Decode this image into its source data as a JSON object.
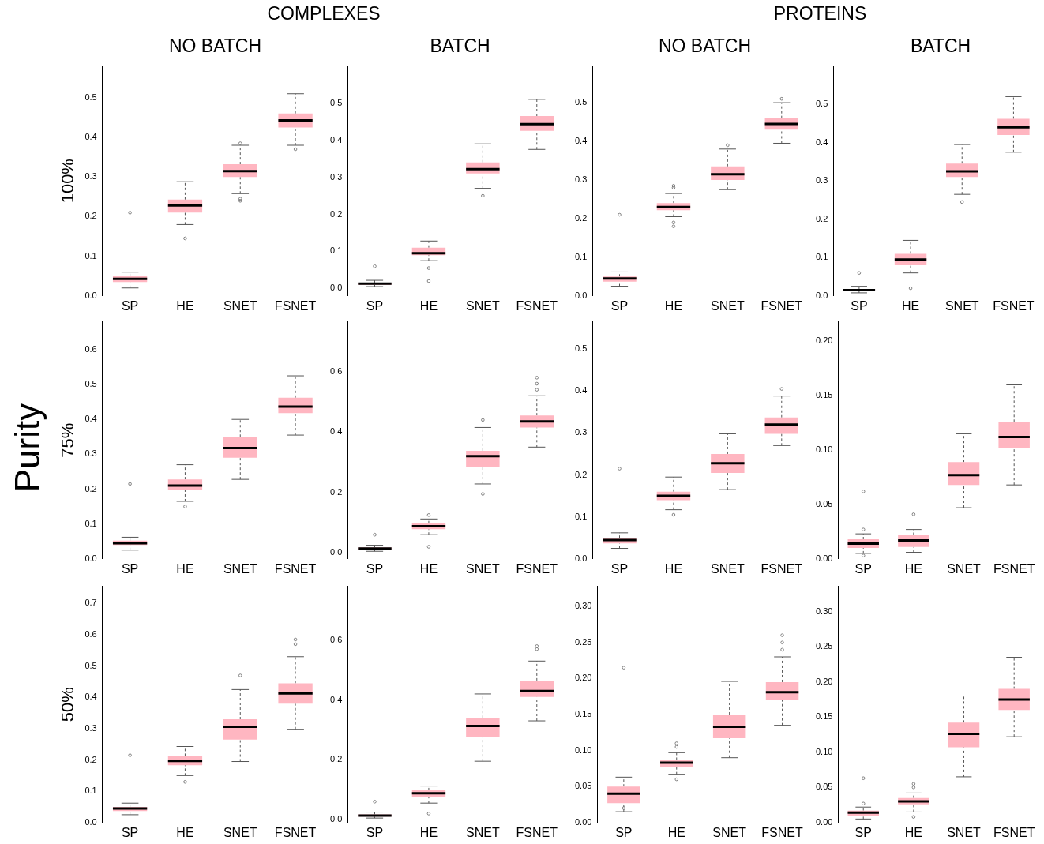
{
  "chart_data": [
    {
      "type": "box",
      "title": "NO BATCH",
      "ylabel": "100%",
      "annotations": [
        "COMPLEXES"
      ],
      "categories": [
        "SP",
        "HE",
        "SNET",
        "FSNET"
      ],
      "ylim": [
        0,
        0.58
      ],
      "yticks": [
        {
          "value": 0,
          "label": "0.0"
        },
        0.1,
        0.2,
        0.3,
        0.4,
        0.5
      ],
      "grid": false,
      "series": [
        {
          "color": "#ffb6c1",
          "boxes": [
            {
              "low": 0.02,
              "q1": 0.035,
              "median": 0.043,
              "q3": 0.05,
              "high": 0.06,
              "outliers": [
                0.21
              ]
            },
            {
              "low": 0.18,
              "q1": 0.21,
              "median": 0.228,
              "q3": 0.243,
              "high": 0.288,
              "outliers": [
                0.145
              ]
            },
            {
              "low": 0.258,
              "q1": 0.3,
              "median": 0.315,
              "q3": 0.332,
              "high": 0.38,
              "outliers": [
                0.245,
                0.24,
                0.385
              ]
            },
            {
              "low": 0.38,
              "q1": 0.425,
              "median": 0.443,
              "q3": 0.46,
              "high": 0.51,
              "outliers": [
                0.37
              ]
            }
          ]
        }
      ]
    },
    {
      "type": "box",
      "title": "BATCH",
      "categories": [
        "SP",
        "HE",
        "SNET",
        "FSNET"
      ],
      "ylim": [
        -0.02,
        0.6
      ],
      "yticks": [
        {
          "value": 0,
          "label": "0.0"
        },
        0.1,
        0.2,
        0.3,
        0.4,
        0.5
      ],
      "grid": false,
      "series": [
        {
          "color": "#ffb6c1",
          "boxes": [
            {
              "low": 0.005,
              "q1": 0.01,
              "median": 0.013,
              "q3": 0.016,
              "high": 0.022,
              "outliers": [
                0.06
              ]
            },
            {
              "low": 0.075,
              "q1": 0.09,
              "median": 0.095,
              "q3": 0.11,
              "high": 0.128,
              "outliers": [
                0.02,
                0.055
              ]
            },
            {
              "low": 0.27,
              "q1": 0.31,
              "median": 0.322,
              "q3": 0.34,
              "high": 0.39,
              "outliers": [
                0.25
              ]
            },
            {
              "low": 0.375,
              "q1": 0.425,
              "median": 0.443,
              "q3": 0.465,
              "high": 0.51
            }
          ]
        }
      ]
    },
    {
      "type": "box",
      "title": "NO BATCH",
      "annotations": [
        "PROTEINS"
      ],
      "categories": [
        "SP",
        "HE",
        "SNET",
        "FSNET"
      ],
      "ylim": [
        0,
        0.595
      ],
      "yticks": [
        {
          "value": 0,
          "label": "0.0"
        },
        0.1,
        0.2,
        0.3,
        0.4,
        0.5
      ],
      "grid": false,
      "series": [
        {
          "color": "#ffb6c1",
          "boxes": [
            {
              "low": 0.025,
              "q1": 0.037,
              "median": 0.045,
              "q3": 0.05,
              "high": 0.062,
              "outliers": [
                0.21
              ]
            },
            {
              "low": 0.205,
              "q1": 0.222,
              "median": 0.23,
              "q3": 0.24,
              "high": 0.265,
              "outliers": [
                0.18,
                0.19,
                0.28,
                0.285
              ]
            },
            {
              "low": 0.275,
              "q1": 0.3,
              "median": 0.315,
              "q3": 0.335,
              "high": 0.38,
              "outliers": [
                0.39
              ]
            },
            {
              "low": 0.395,
              "q1": 0.43,
              "median": 0.445,
              "q3": 0.46,
              "high": 0.5,
              "outliers": [
                0.51
              ]
            }
          ]
        }
      ]
    },
    {
      "type": "box",
      "title": "BATCH",
      "categories": [
        "SP",
        "HE",
        "SNET",
        "FSNET"
      ],
      "ylim": [
        0,
        0.6
      ],
      "yticks": [
        {
          "value": 0,
          "label": "0.0"
        },
        0.1,
        0.2,
        0.3,
        0.4,
        0.5
      ],
      "grid": false,
      "series": [
        {
          "color": "#ffb6c1",
          "boxes": [
            {
              "low": 0.008,
              "q1": 0.012,
              "median": 0.015,
              "q3": 0.018,
              "high": 0.025,
              "outliers": [
                0.06
              ]
            },
            {
              "low": 0.06,
              "q1": 0.08,
              "median": 0.095,
              "q3": 0.11,
              "high": 0.145,
              "outliers": [
                0.02
              ]
            },
            {
              "low": 0.265,
              "q1": 0.31,
              "median": 0.325,
              "q3": 0.345,
              "high": 0.395,
              "outliers": [
                0.245
              ]
            },
            {
              "low": 0.375,
              "q1": 0.42,
              "median": 0.44,
              "q3": 0.462,
              "high": 0.52
            }
          ]
        }
      ]
    },
    {
      "type": "box",
      "ylabel": "75%",
      "annotations": [
        "Purity"
      ],
      "categories": [
        "SP",
        "HE",
        "SNET",
        "FSNET"
      ],
      "ylim": [
        0,
        0.68
      ],
      "yticks": [
        {
          "value": 0,
          "label": "0.0"
        },
        0.1,
        0.2,
        0.3,
        0.4,
        0.5,
        0.6
      ],
      "grid": false,
      "series": [
        {
          "color": "#ffb6c1",
          "boxes": [
            {
              "low": 0.025,
              "q1": 0.04,
              "median": 0.045,
              "q3": 0.052,
              "high": 0.062,
              "outliers": [
                0.215
              ]
            },
            {
              "low": 0.165,
              "q1": 0.197,
              "median": 0.21,
              "q3": 0.228,
              "high": 0.27,
              "outliers": [
                0.15
              ]
            },
            {
              "low": 0.228,
              "q1": 0.29,
              "median": 0.318,
              "q3": 0.35,
              "high": 0.4
            },
            {
              "low": 0.355,
              "q1": 0.418,
              "median": 0.437,
              "q3": 0.462,
              "high": 0.525
            }
          ]
        }
      ]
    },
    {
      "type": "box",
      "categories": [
        "SP",
        "HE",
        "SNET",
        "FSNET"
      ],
      "ylim": [
        -0.02,
        0.765
      ],
      "yticks": [
        {
          "value": 0,
          "label": "0.0"
        },
        0.2,
        0.4,
        0.6
      ],
      "grid": false,
      "series": [
        {
          "color": "#ffb6c1",
          "boxes": [
            {
              "low": 0.005,
              "q1": 0.01,
              "median": 0.014,
              "q3": 0.018,
              "high": 0.025,
              "outliers": [
                0.06
              ]
            },
            {
              "low": 0.06,
              "q1": 0.078,
              "median": 0.088,
              "q3": 0.098,
              "high": 0.112,
              "outliers": [
                0.02,
                0.125
              ]
            },
            {
              "low": 0.228,
              "q1": 0.285,
              "median": 0.32,
              "q3": 0.338,
              "high": 0.415,
              "outliers": [
                0.195,
                0.44
              ]
            },
            {
              "low": 0.35,
              "q1": 0.415,
              "median": 0.435,
              "q3": 0.455,
              "high": 0.52,
              "outliers": [
                0.54,
                0.56,
                0.58
              ]
            }
          ]
        }
      ]
    },
    {
      "type": "box",
      "categories": [
        "SP",
        "HE",
        "SNET",
        "FSNET"
      ],
      "ylim": [
        0,
        0.565
      ],
      "yticks": [
        {
          "value": 0,
          "label": "0.0"
        },
        0.1,
        0.2,
        0.3,
        0.4,
        0.5
      ],
      "grid": false,
      "series": [
        {
          "color": "#ffb6c1",
          "boxes": [
            {
              "low": 0.025,
              "q1": 0.037,
              "median": 0.045,
              "q3": 0.05,
              "high": 0.062,
              "outliers": [
                0.215
              ]
            },
            {
              "low": 0.117,
              "q1": 0.14,
              "median": 0.15,
              "q3": 0.16,
              "high": 0.195,
              "outliers": [
                0.105
              ]
            },
            {
              "low": 0.165,
              "q1": 0.205,
              "median": 0.228,
              "q3": 0.25,
              "high": 0.298
            },
            {
              "low": 0.27,
              "q1": 0.298,
              "median": 0.32,
              "q3": 0.337,
              "high": 0.388,
              "outliers": [
                0.405
              ]
            }
          ]
        }
      ]
    },
    {
      "type": "box",
      "categories": [
        "SP",
        "HE",
        "SNET",
        "FSNET"
      ],
      "ylim": [
        0,
        0.218
      ],
      "yticks": [
        {
          "value": 0,
          "label": "0.00"
        },
        {
          "value": 0.05,
          "label": "0.05"
        },
        {
          "value": 0.1,
          "label": "0.10"
        },
        {
          "value": 0.15,
          "label": "0.15"
        },
        {
          "value": 0.2,
          "label": "0.20"
        }
      ],
      "grid": false,
      "series": [
        {
          "color": "#ffb6c1",
          "boxes": [
            {
              "low": 0.005,
              "q1": 0.01,
              "median": 0.014,
              "q3": 0.018,
              "high": 0.023,
              "outliers": [
                0.062,
                0.027,
                0.003
              ]
            },
            {
              "low": 0.006,
              "q1": 0.011,
              "median": 0.017,
              "q3": 0.022,
              "high": 0.027,
              "outliers": [
                0.041
              ]
            },
            {
              "low": 0.047,
              "q1": 0.068,
              "median": 0.077,
              "q3": 0.089,
              "high": 0.115
            },
            {
              "low": 0.068,
              "q1": 0.102,
              "median": 0.112,
              "q3": 0.126,
              "high": 0.16
            }
          ]
        }
      ]
    },
    {
      "type": "box",
      "ylabel": "50%",
      "categories": [
        "SP",
        "HE",
        "SNET",
        "FSNET"
      ],
      "ylim": [
        0,
        0.755
      ],
      "yticks": [
        {
          "value": 0,
          "label": "0.0"
        },
        0.1,
        0.2,
        0.3,
        0.4,
        0.5,
        0.6,
        0.7
      ],
      "grid": false,
      "series": [
        {
          "color": "#ffb6c1",
          "boxes": [
            {
              "low": 0.025,
              "q1": 0.037,
              "median": 0.045,
              "q3": 0.05,
              "high": 0.062,
              "outliers": [
                0.215
              ]
            },
            {
              "low": 0.15,
              "q1": 0.183,
              "median": 0.197,
              "q3": 0.213,
              "high": 0.243,
              "outliers": [
                0.13
              ]
            },
            {
              "low": 0.195,
              "q1": 0.265,
              "median": 0.306,
              "q3": 0.33,
              "high": 0.425,
              "outliers": [
                0.47
              ]
            },
            {
              "low": 0.298,
              "q1": 0.38,
              "median": 0.413,
              "q3": 0.445,
              "high": 0.53,
              "outliers": [
                0.57,
                0.585
              ]
            }
          ]
        }
      ]
    },
    {
      "type": "box",
      "categories": [
        "SP",
        "HE",
        "SNET",
        "FSNET"
      ],
      "ylim": [
        -0.01,
        0.78
      ],
      "yticks": [
        {
          "value": 0,
          "label": "0.0"
        },
        0.2,
        0.4,
        0.6
      ],
      "grid": false,
      "series": [
        {
          "color": "#ffb6c1",
          "boxes": [
            {
              "low": 0.005,
              "q1": 0.01,
              "median": 0.013,
              "q3": 0.017,
              "high": 0.025,
              "outliers": [
                0.06
              ]
            },
            {
              "low": 0.055,
              "q1": 0.075,
              "median": 0.088,
              "q3": 0.098,
              "high": 0.112,
              "outliers": [
                0.02
              ]
            },
            {
              "low": 0.195,
              "q1": 0.275,
              "median": 0.313,
              "q3": 0.34,
              "high": 0.42
            },
            {
              "low": 0.33,
              "q1": 0.41,
              "median": 0.43,
              "q3": 0.465,
              "high": 0.53,
              "outliers": [
                0.57,
                0.58
              ]
            }
          ]
        }
      ]
    },
    {
      "type": "box",
      "categories": [
        "SP",
        "HE",
        "SNET",
        "FSNET"
      ],
      "ylim": [
        0,
        0.328
      ],
      "yticks": [
        {
          "value": 0,
          "label": "0.00"
        },
        {
          "value": 0.05,
          "label": "0.05"
        },
        {
          "value": 0.1,
          "label": "0.10"
        },
        {
          "value": 0.15,
          "label": "0.15"
        },
        {
          "value": 0.2,
          "label": "0.20"
        },
        {
          "value": 0.25,
          "label": "0.25"
        },
        {
          "value": 0.3,
          "label": "0.30"
        }
      ],
      "grid": false,
      "series": [
        {
          "color": "#ffb6c1",
          "boxes": [
            {
              "low": 0.015,
              "q1": 0.027,
              "median": 0.04,
              "q3": 0.05,
              "high": 0.063,
              "outliers": [
                0.215,
                0.02
              ]
            },
            {
              "low": 0.067,
              "q1": 0.077,
              "median": 0.083,
              "q3": 0.087,
              "high": 0.097,
              "outliers": [
                0.06,
                0.11,
                0.105
              ]
            },
            {
              "low": 0.09,
              "q1": 0.117,
              "median": 0.133,
              "q3": 0.15,
              "high": 0.196
            },
            {
              "low": 0.135,
              "q1": 0.17,
              "median": 0.181,
              "q3": 0.195,
              "high": 0.23,
              "outliers": [
                0.24,
                0.25,
                0.26
              ]
            }
          ]
        }
      ]
    },
    {
      "type": "box",
      "categories": [
        "SP",
        "HE",
        "SNET",
        "FSNET"
      ],
      "ylim": [
        0,
        0.336
      ],
      "yticks": [
        {
          "value": 0,
          "label": "0.00"
        },
        {
          "value": 0.05,
          "label": "0.05"
        },
        {
          "value": 0.1,
          "label": "0.10"
        },
        {
          "value": 0.15,
          "label": "0.15"
        },
        {
          "value": 0.2,
          "label": "0.20"
        },
        {
          "value": 0.25,
          "label": "0.25"
        },
        {
          "value": 0.3,
          "label": "0.30"
        }
      ],
      "grid": false,
      "series": [
        {
          "color": "#ffb6c1",
          "boxes": [
            {
              "low": 0.005,
              "q1": 0.01,
              "median": 0.014,
              "q3": 0.017,
              "high": 0.022,
              "outliers": [
                0.063,
                0.027
              ]
            },
            {
              "low": 0.015,
              "q1": 0.026,
              "median": 0.03,
              "q3": 0.035,
              "high": 0.042,
              "outliers": [
                0.05,
                0.055,
                0.008
              ]
            },
            {
              "low": 0.065,
              "q1": 0.107,
              "median": 0.126,
              "q3": 0.142,
              "high": 0.18
            },
            {
              "low": 0.122,
              "q1": 0.16,
              "median": 0.175,
              "q3": 0.19,
              "high": 0.235
            }
          ]
        }
      ]
    }
  ]
}
